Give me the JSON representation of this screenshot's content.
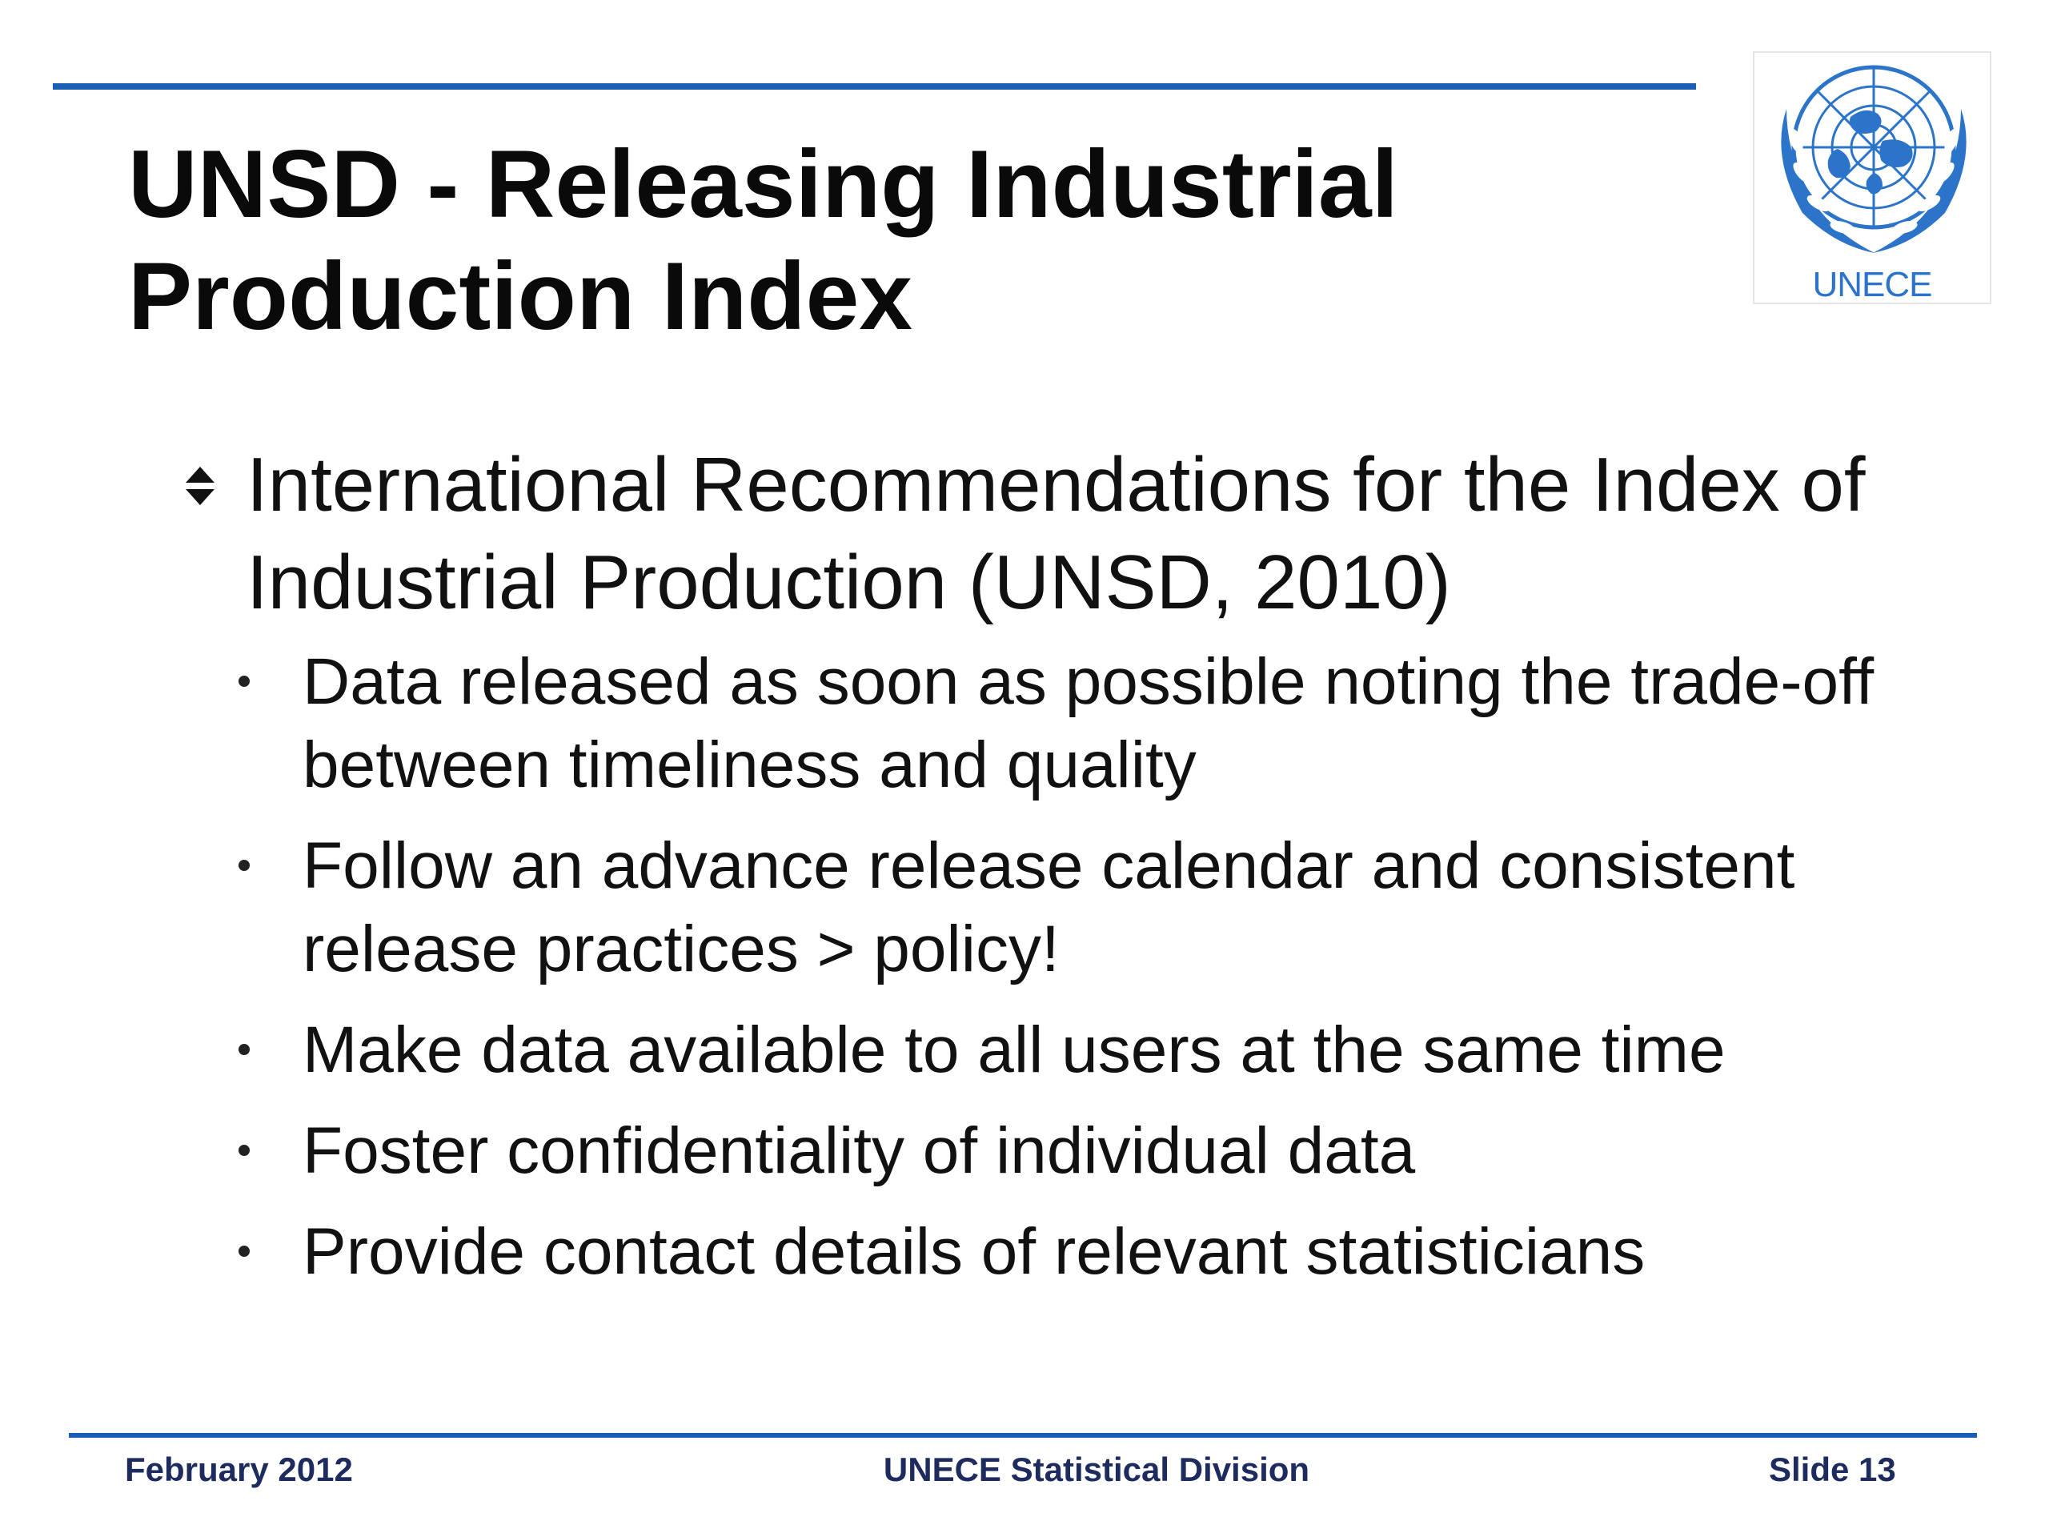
{
  "slide": {
    "title": "UNSD - Releasing Industrial\nProduction Index",
    "logo_label": "UNECE",
    "main_bullet": "International Recommendations for the Index of Industrial Production (UNSD, 2010)",
    "sub_bullets": [
      "Data released as soon as possible noting the trade-off between timeliness and quality",
      "Follow an advance release calendar and consistent release practices > policy!",
      "Make data available to all users at the same time",
      "Foster confidentiality of individual data",
      "Provide contact details of relevant statisticians"
    ]
  },
  "footer": {
    "date": "February 2012",
    "org": "UNECE Statistical Division",
    "slide_number": "Slide 13"
  },
  "colors": {
    "rule": "#1a5fb4",
    "logo": "#2b74c9",
    "footer_text": "#1d2b5e"
  }
}
